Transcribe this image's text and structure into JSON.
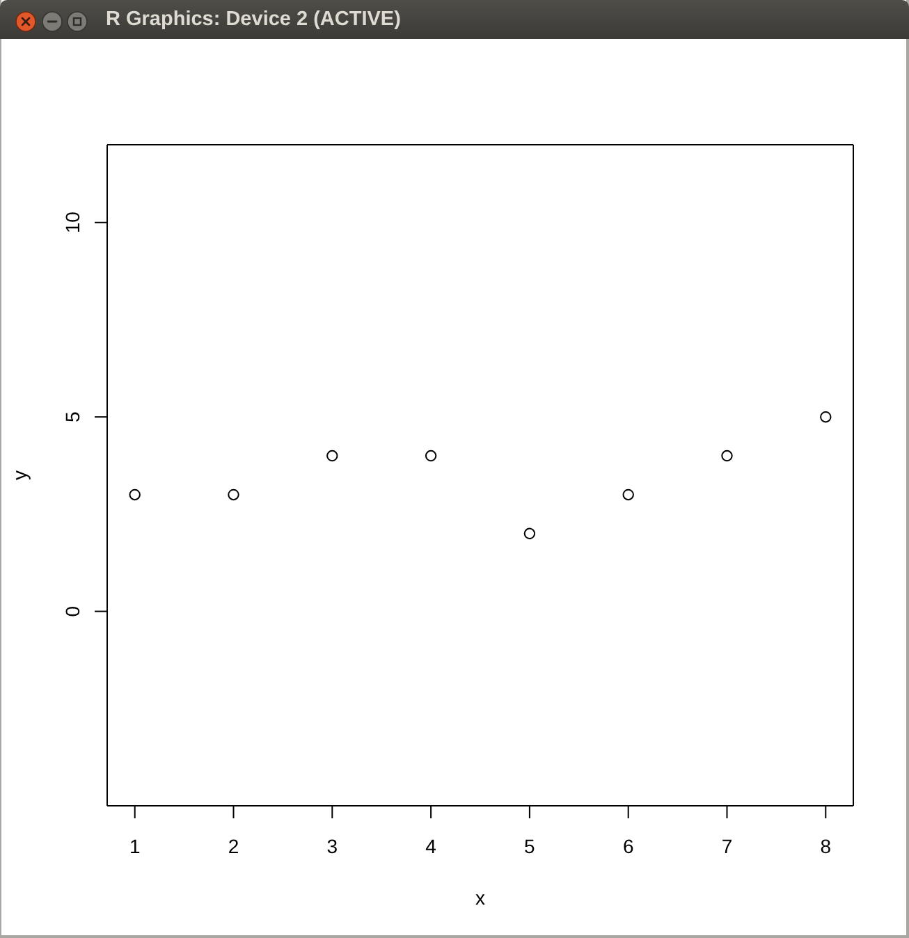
{
  "chart_data": {
    "type": "scatter",
    "xlabel": "x",
    "ylabel": "y",
    "x": [
      1,
      2,
      3,
      4,
      5,
      6,
      7,
      8
    ],
    "values": [
      3,
      3,
      4,
      4,
      2,
      3,
      4,
      5
    ],
    "color": "#000000",
    "marker": "circle",
    "xlim": [
      0.72,
      8.28
    ],
    "ylim": [
      -5,
      12
    ],
    "xticks": [
      1,
      2,
      3,
      4,
      5,
      6,
      7,
      8
    ],
    "yticks": [
      0,
      5,
      10
    ],
    "annotations": [
      "R Graphics: Device 2 (ACTIVE)"
    ]
  }
}
